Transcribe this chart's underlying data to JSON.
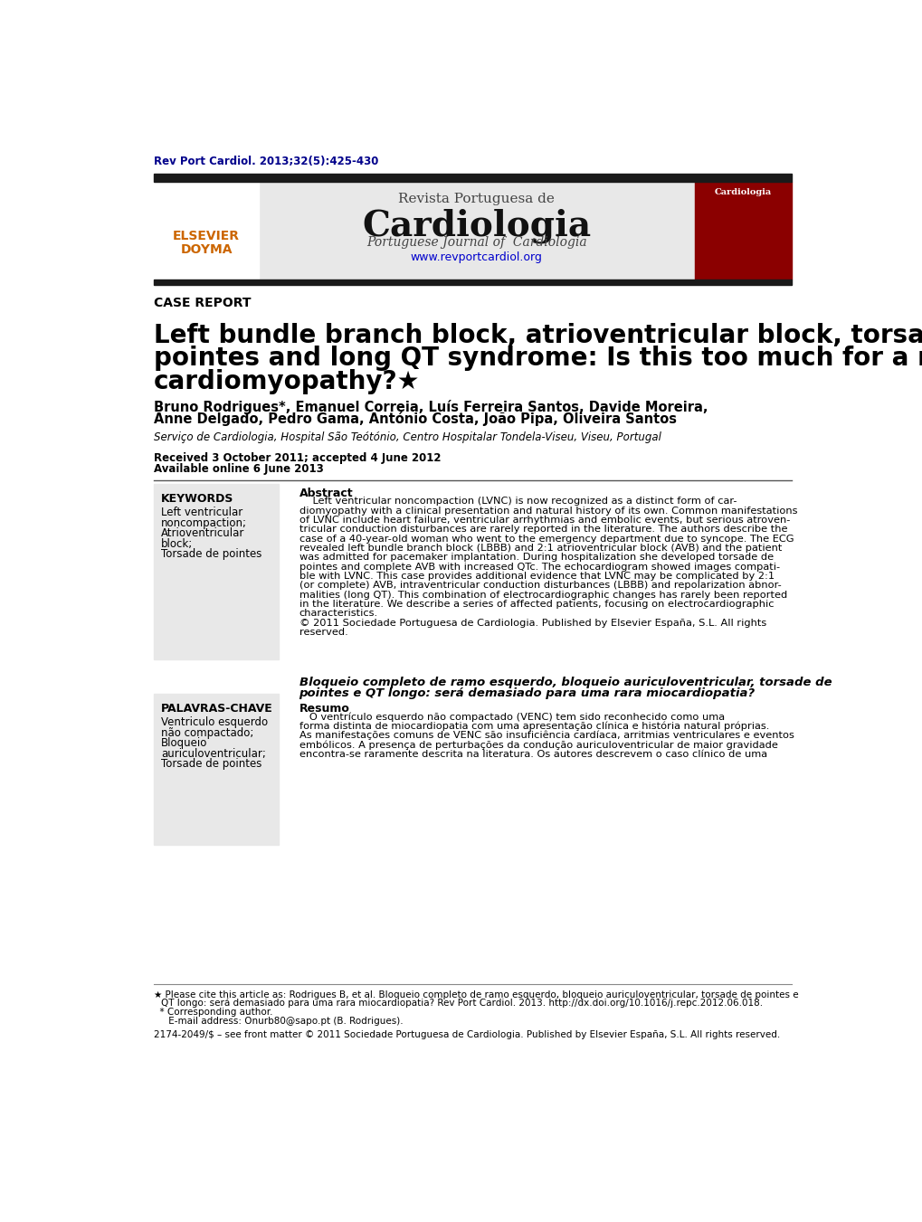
{
  "journal_ref": "Rev Port Cardiol. 2013;32(5):425-430",
  "journal_ref_color": "#00008B",
  "header_left_text_line1": "Revista Portuguesa de",
  "section_label": "CASE REPORT",
  "title_line1": "Left bundle branch block, atrioventricular block, torsade de",
  "title_line2": "pointes and long QT syndrome: Is this too much for a rare",
  "title_line3": "cardiomyopathy?★",
  "authors_line1": "Bruno Rodrigues*, Emanuel Correia, Luís Ferreira Santos, Davide Moreira,",
  "authors_line2": "Anne Delgado, Pedro Gama, António Costa, João Pipa, Oliveira Santos",
  "affiliation": "Serviço de Cardiologia, Hospital São Teótónio, Centro Hospitalar Tondela-Viseu, Viseu, Portugal",
  "received": "Received 3 October 2011; accepted 4 June 2012",
  "available": "Available online 6 June 2013",
  "keywords_title": "KEYWORDS",
  "keywords_lines": [
    "Left ventricular",
    "noncompaction;",
    "Atrioventricular",
    "block;",
    "Torsade de pointes"
  ],
  "palavras_chave_title": "PALAVRAS-CHAVE",
  "palavras_chave_lines": [
    "Ventriculo esquerdo",
    "não compactado;",
    "Bloqueio",
    "auriculoventricular;",
    "Torsade de pointes"
  ],
  "abstract_label": "Abstract",
  "abstract_lines": [
    "    Left ventricular noncompaction (LVNC) is now recognized as a distinct form of car-",
    "diomyopathy with a clinical presentation and natural history of its own. Common manifestations",
    "of LVNC include heart failure, ventricular arrhythmias and embolic events, but serious atroven-",
    "tricular conduction disturbances are rarely reported in the literature. The authors describe the",
    "case of a 40-year-old woman who went to the emergency department due to syncope. The ECG",
    "revealed left bundle branch block (LBBB) and 2:1 atrioventricular block (AVB) and the patient",
    "was admitted for pacemaker implantation. During hospitalization she developed torsade de",
    "pointes and complete AVB with increased QTc. The echocardiogram showed images compati-",
    "ble with LVNC. This case provides additional evidence that LVNC may be complicated by 2:1",
    "(or complete) AVB, intraventricular conduction disturbances (LBBB) and repolarization abnor-",
    "malities (long QT). This combination of electrocardiographic changes has rarely been reported",
    "in the literature. We describe a series of affected patients, focusing on electrocardiographic",
    "characteristics.",
    "© 2011 Sociedade Portuguesa de Cardiologia. Published by Elsevier España, S.L. All rights",
    "reserved."
  ],
  "pt_title_line1": "Bloqueio completo de ramo esquerdo, bloqueio auriculoventricular, torsade de",
  "pt_title_line2": "pointes e QT longo: será demasiado para uma rara miocardiopatia?",
  "resumo_label": "Resumo",
  "resumo_lines": [
    "   O ventrículo esquerdo não compactado (VENC) tem sido reconhecido como uma",
    "forma distinta de miocardiopatia com uma apresentação clínica e história natural próprias.",
    "As manifestações comuns de VENC são insuficiência cardíaca, arritmias ventriculares e eventos",
    "embólicos. A presença de perturbações da condução auriculoventricular de maior gravidade",
    "encontra-se raramente descrita na literatura. Os autores descrevem o caso clínico de uma"
  ],
  "fn1a": "★ Please cite this article as: Rodrigues B, et al. Bloqueio completo de ramo esquerdo, bloqueio auriculoventricular, torsade de pointes e",
  "fn1b": "QT longo: será demasiado para uma rara miocardiopatia? Rev Port Cardiol. 2013. http://dx.doi.org/10.1016/j.repc.2012.06.018.",
  "fn2": "  * Corresponding author.",
  "fn3": "     E-mail address: Onurb80@sapo.pt (B. Rodrigues).",
  "fn4": "2174-2049/$ – see front matter © 2011 Sociedade Portuguesa de Cardiologia. Published by Elsevier España, S.L. All rights reserved.",
  "bg_color": "#ffffff",
  "header_bar_color": "#1a1a1a",
  "keyword_box_color": "#e8e8e8"
}
